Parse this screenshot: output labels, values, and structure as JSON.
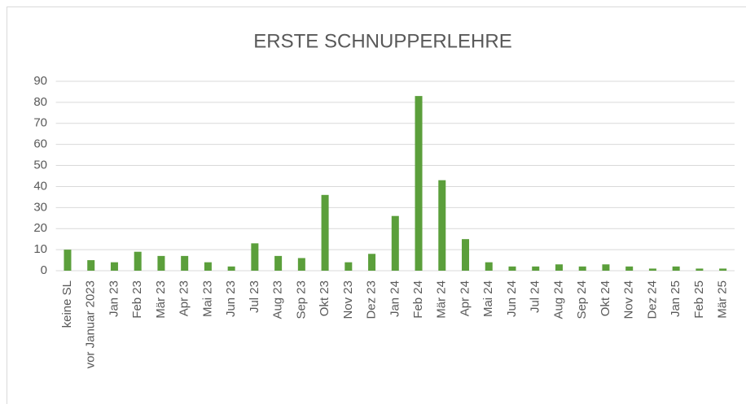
{
  "chart_data": {
    "type": "bar",
    "title": "ERSTE SCHNUPPERLEHRE",
    "categories": [
      "keine SL",
      "vor Januar 2023",
      "Jan 23",
      "Feb 23",
      "Mär 23",
      "Apr 23",
      "Mai 23",
      "Jun 23",
      "Jul 23",
      "Aug 23",
      "Sep 23",
      "Okt 23",
      "Nov 23",
      "Dez 23",
      "Jan 24",
      "Feb 24",
      "Mär 24",
      "Apr 24",
      "Mai 24",
      "Jun 24",
      "Jul 24",
      "Aug 24",
      "Sep 24",
      "Okt 24",
      "Nov 24",
      "Dez 24",
      "Jan 25",
      "Feb 25",
      "Mär 25"
    ],
    "values": [
      10,
      5,
      4,
      9,
      7,
      7,
      4,
      2,
      13,
      7,
      6,
      36,
      4,
      8,
      26,
      83,
      43,
      15,
      4,
      2,
      2,
      3,
      2,
      3,
      2,
      1,
      2,
      1,
      1
    ],
    "color": "#5b9f3b",
    "ylim": [
      0,
      90
    ],
    "yticks": [
      0,
      10,
      20,
      30,
      40,
      50,
      60,
      70,
      80,
      90
    ],
    "grid": true
  }
}
